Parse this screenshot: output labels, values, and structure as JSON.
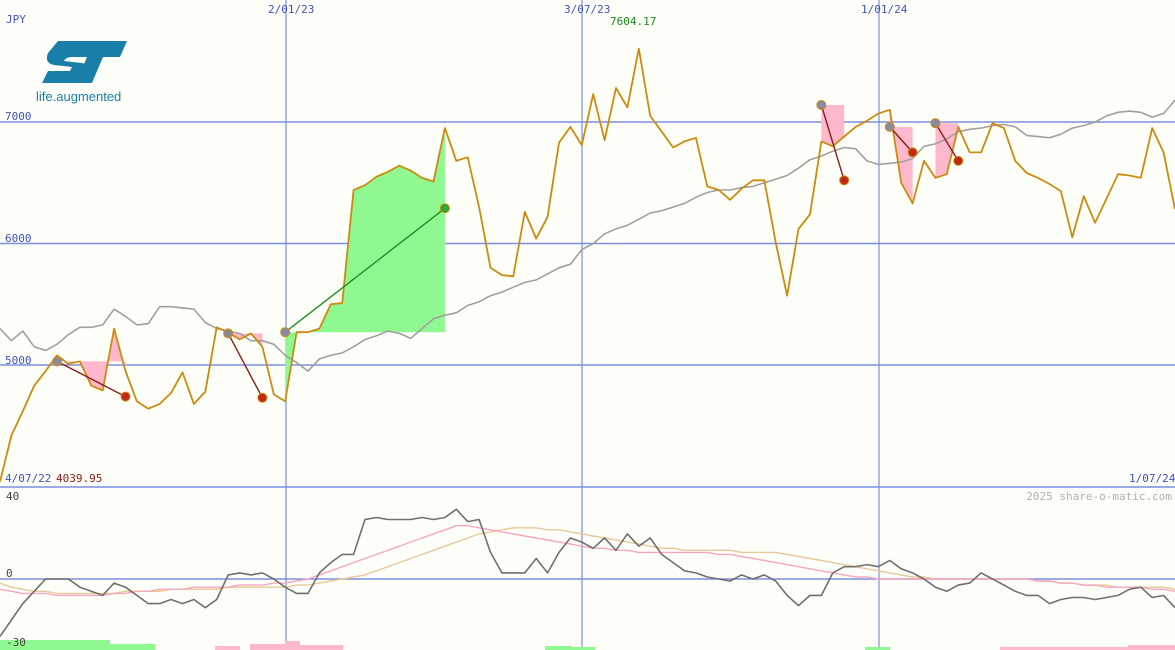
{
  "chart_data": [
    {
      "type": "line",
      "currency": "JPY",
      "logo_tagline": "life.augmented",
      "x_labels": [
        "4/07/22",
        "2/01/23",
        "3/07/23",
        "1/01/24",
        "1/07/24"
      ],
      "y_ticks": [
        5000,
        6000,
        7000
      ],
      "ylim": [
        4039.95,
        7604.17
      ],
      "min_label": "4039.95",
      "max_label": "7604.17",
      "watermark": "2025 share-o-matic.com",
      "colors": {
        "price": "#cc8b10",
        "benchmark": "#a0a0a0",
        "gain": "#90f890",
        "loss": "#ffb8cc",
        "grid": "#7b8fe0"
      },
      "series": [
        {
          "role": "price",
          "values": [
            4039.95,
            4420,
            4620,
            4830,
            4950,
            5080,
            5010,
            5030,
            4830,
            4790,
            5300,
            4950,
            4700,
            4640,
            4680,
            4770,
            4940,
            4680,
            4780,
            5310,
            5270,
            5210,
            5260,
            5150,
            4760,
            4700,
            5270,
            5270,
            5300,
            5500,
            5510,
            6440,
            6480,
            6550,
            6590,
            6640,
            6600,
            6540,
            6510,
            6950,
            6680,
            6710,
            6300,
            5800,
            5740,
            5730,
            6260,
            6040,
            6220,
            6830,
            6960,
            6810,
            7230,
            6850,
            7280,
            7120,
            7604.17,
            7050,
            6920,
            6790,
            6840,
            6870,
            6470,
            6440,
            6360,
            6450,
            6520,
            6520,
            6010,
            5570,
            6120,
            6240,
            6840,
            6800,
            6880,
            6960,
            7010,
            7070,
            7100,
            6500,
            6330,
            6680,
            6540,
            6570,
            6960,
            6750,
            6750,
            6990,
            6950,
            6680,
            6580,
            6540,
            6490,
            6430,
            6050,
            6390,
            6170,
            6370,
            6570,
            6560,
            6540,
            6950,
            6750,
            6280
          ]
        },
        {
          "role": "benchmark",
          "values": [
            5300,
            5200,
            5280,
            5150,
            5120,
            5170,
            5250,
            5310,
            5310,
            5330,
            5460,
            5400,
            5330,
            5340,
            5480,
            5480,
            5470,
            5460,
            5350,
            5300,
            5280,
            5260,
            5200,
            5200,
            5170,
            5080,
            5020,
            4950,
            5050,
            5080,
            5100,
            5150,
            5210,
            5240,
            5280,
            5260,
            5220,
            5300,
            5380,
            5410,
            5430,
            5490,
            5520,
            5570,
            5600,
            5640,
            5680,
            5700,
            5750,
            5800,
            5830,
            5950,
            6000,
            6080,
            6120,
            6150,
            6200,
            6250,
            6270,
            6300,
            6330,
            6380,
            6420,
            6440,
            6440,
            6460,
            6470,
            6500,
            6530,
            6560,
            6620,
            6690,
            6720,
            6760,
            6790,
            6780,
            6680,
            6650,
            6660,
            6670,
            6700,
            6800,
            6820,
            6860,
            6920,
            6940,
            6950,
            6970,
            6980,
            6960,
            6890,
            6880,
            6870,
            6900,
            6950,
            6970,
            7000,
            7050,
            7080,
            7090,
            7080,
            7040,
            7070,
            7180
          ]
        }
      ],
      "trades": [
        {
          "kind": "loss",
          "entry": [
            5,
            5030
          ],
          "exit": [
            11,
            4740
          ]
        },
        {
          "kind": "loss",
          "entry": [
            20,
            5260
          ],
          "exit": [
            23,
            4730
          ]
        },
        {
          "kind": "gain",
          "entry": [
            25,
            5270
          ],
          "exit": [
            39,
            6290
          ]
        },
        {
          "kind": "loss",
          "entry": [
            72,
            7140
          ],
          "exit": [
            74,
            6520
          ]
        },
        {
          "kind": "loss",
          "entry": [
            78,
            6960
          ],
          "exit": [
            80,
            6750
          ]
        },
        {
          "kind": "loss",
          "entry": [
            82,
            6990
          ],
          "exit": [
            84,
            6680
          ]
        }
      ]
    },
    {
      "type": "line",
      "role": "oscillator",
      "y_ticks": [
        40,
        0,
        -30
      ],
      "ylim": [
        -30,
        40
      ],
      "series": [
        {
          "role": "oscillator",
          "color": "#707070",
          "values": [
            -28,
            -20,
            -12,
            -6,
            0,
            0,
            0,
            -4,
            -6,
            -8,
            -2,
            -4,
            -8,
            -12,
            -12,
            -10,
            -12,
            -10,
            -14,
            -10,
            2,
            3,
            2,
            3,
            0,
            -4,
            -7,
            -7,
            3,
            8,
            12,
            12,
            29,
            30,
            29,
            29,
            29,
            30,
            29,
            30,
            34,
            28,
            29,
            13,
            3,
            3,
            3,
            10,
            3,
            13,
            20,
            18,
            15,
            20,
            14,
            22,
            16,
            20,
            12,
            8,
            4,
            3,
            1,
            0,
            -1,
            2,
            0,
            2,
            -1,
            -8,
            -13,
            -8,
            -8,
            3,
            6,
            6,
            7,
            6,
            9,
            5,
            3,
            0,
            -4,
            -6,
            -3,
            -2,
            3,
            0,
            -3,
            -6,
            -8,
            -8,
            -12,
            -10,
            -9,
            -9,
            -10,
            -9,
            -8,
            -5,
            -4,
            -9,
            -8,
            -14
          ]
        },
        {
          "role": "fast-average",
          "color": "#f4a8c0",
          "values": [
            -5,
            -6,
            -7,
            -7,
            -7,
            -8,
            -8,
            -8,
            -8,
            -8,
            -7,
            -7,
            -6,
            -6,
            -5,
            -5,
            -5,
            -4,
            -4,
            -4,
            -4,
            -3,
            -3,
            -3,
            -2,
            -2,
            -1,
            0,
            2,
            4,
            6,
            8,
            10,
            12,
            14,
            16,
            18,
            20,
            22,
            24,
            26,
            26,
            25,
            24,
            23,
            22,
            21,
            20,
            19,
            18,
            17,
            16,
            15,
            15,
            14,
            14,
            13,
            13,
            13,
            13,
            13,
            13,
            13,
            12,
            12,
            11,
            10,
            9,
            8,
            7,
            6,
            5,
            4,
            3,
            2,
            1,
            1,
            0,
            0,
            0,
            0,
            0,
            0,
            0,
            0,
            0,
            0,
            0,
            0,
            0,
            0,
            -1,
            -1,
            -2,
            -2,
            -3,
            -3,
            -4,
            -4,
            -4,
            -4,
            -5,
            -5,
            -6
          ]
        },
        {
          "role": "slow-average",
          "color": "#e8c89a",
          "values": [
            -2,
            -4,
            -5,
            -6,
            -6,
            -7,
            -7,
            -7,
            -7,
            -7,
            -7,
            -6,
            -6,
            -6,
            -6,
            -5,
            -5,
            -5,
            -5,
            -5,
            -4,
            -4,
            -4,
            -4,
            -4,
            -4,
            -3,
            -3,
            -2,
            -1,
            0,
            1,
            2,
            4,
            6,
            8,
            10,
            12,
            14,
            16,
            18,
            20,
            22,
            23,
            24,
            25,
            25,
            25,
            24,
            24,
            23,
            22,
            21,
            20,
            19,
            18,
            17,
            16,
            15,
            15,
            14,
            14,
            14,
            14,
            14,
            13,
            13,
            13,
            13,
            12,
            11,
            10,
            9,
            8,
            7,
            6,
            5,
            4,
            3,
            2,
            1,
            1,
            0,
            0,
            0,
            0,
            0,
            0,
            0,
            0,
            0,
            -1,
            -1,
            -2,
            -2,
            -3,
            -3,
            -3,
            -4,
            -4,
            -4,
            -4,
            -4,
            -5
          ]
        }
      ]
    }
  ]
}
